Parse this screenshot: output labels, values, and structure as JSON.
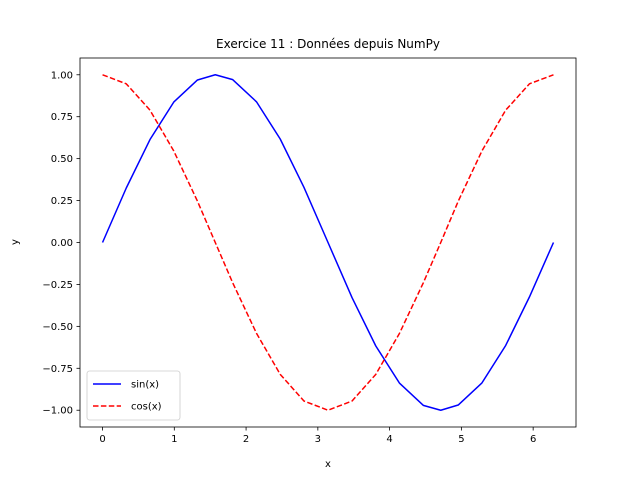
{
  "chart_data": {
    "type": "line",
    "title": "Exercice 11 : Données depuis NumPy",
    "xlabel": "x",
    "ylabel": "y",
    "xlim": [
      -0.314,
      6.597
    ],
    "ylim": [
      -1.1,
      1.1
    ],
    "xticks": [
      0,
      1,
      2,
      3,
      4,
      5,
      6
    ],
    "xtick_labels": [
      "0",
      "1",
      "2",
      "3",
      "4",
      "5",
      "6"
    ],
    "yticks": [
      -1.0,
      -0.75,
      -0.5,
      -0.25,
      0.0,
      0.25,
      0.5,
      0.75,
      1.0
    ],
    "ytick_labels": [
      "−1.00",
      "−0.75",
      "−0.50",
      "−0.25",
      "0.00",
      "0.25",
      "0.50",
      "0.75",
      "1.00"
    ],
    "grid": false,
    "legend_position": "lower-left",
    "x": [
      0,
      0.3307,
      0.6614,
      0.9921,
      1.3228,
      1.5708,
      1.8142,
      2.1449,
      2.4756,
      2.8063,
      3.1416,
      3.4769,
      3.8076,
      4.1383,
      4.469,
      4.7124,
      4.9558,
      5.2865,
      5.6172,
      5.9479,
      6.2832
    ],
    "series": [
      {
        "name": "sin(x)",
        "color": "#0000ff",
        "linestyle": "solid",
        "values": [
          0.0,
          0.325,
          0.614,
          0.837,
          0.969,
          1.0,
          0.971,
          0.839,
          0.617,
          0.329,
          0.0,
          -0.329,
          -0.617,
          -0.839,
          -0.971,
          -1.0,
          -0.969,
          -0.837,
          -0.614,
          -0.325,
          0.0
        ]
      },
      {
        "name": "cos(x)",
        "color": "#ff0000",
        "linestyle": "dashed",
        "values": [
          1.0,
          0.946,
          0.789,
          0.546,
          0.246,
          0.0,
          -0.241,
          -0.541,
          -0.786,
          -0.945,
          -1.0,
          -0.945,
          -0.786,
          -0.541,
          -0.241,
          0.0,
          0.246,
          0.546,
          0.789,
          0.946,
          1.0
        ]
      }
    ]
  }
}
